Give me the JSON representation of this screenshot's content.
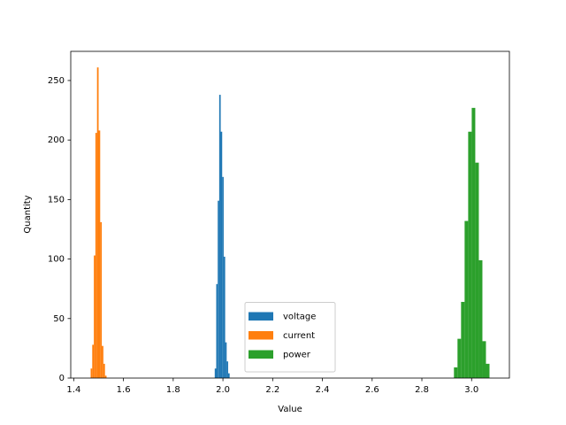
{
  "chart_data": {
    "type": "histogram",
    "x_label": "Value",
    "y_label": "Quantity",
    "xlim": [
      1.388,
      3.152
    ],
    "ylim": [
      0,
      274.5
    ],
    "xticks": [
      1.4,
      1.6,
      1.8,
      {
        "value": 2,
        "label": "2.0"
      },
      2.2,
      2.4,
      2.6,
      2.8,
      {
        "value": 3,
        "label": "3.0"
      }
    ],
    "yticks": [
      0,
      50,
      100,
      150,
      200,
      250
    ],
    "legend": "lower center",
    "series": [
      {
        "name": "voltage",
        "color": "#1f77b4",
        "bins": [
          1.967,
          1.973,
          1.979,
          1.985,
          1.991,
          1.997,
          2.003,
          2.009,
          2.015,
          2.021,
          2.027
        ],
        "values": [
          8,
          79,
          149,
          238,
          207,
          169,
          102,
          30,
          14,
          4
        ]
      },
      {
        "name": "current",
        "color": "#ff7f0e",
        "bins": [
          1.468,
          1.4744,
          1.4808,
          1.4872,
          1.4936,
          1.5,
          1.5064,
          1.5128,
          1.5192,
          1.5256,
          1.532
        ],
        "values": [
          8,
          28,
          103,
          206,
          261,
          208,
          131,
          27,
          12,
          2
        ]
      },
      {
        "name": "power",
        "color": "#2ca02c",
        "bins": [
          2.929,
          2.9433,
          2.9576,
          2.9719,
          2.9862,
          3.0005,
          3.0148,
          3.0291,
          3.0434,
          3.0577,
          3.072
        ],
        "values": [
          9,
          33,
          64,
          132,
          207,
          227,
          181,
          99,
          31,
          12
        ]
      }
    ]
  }
}
